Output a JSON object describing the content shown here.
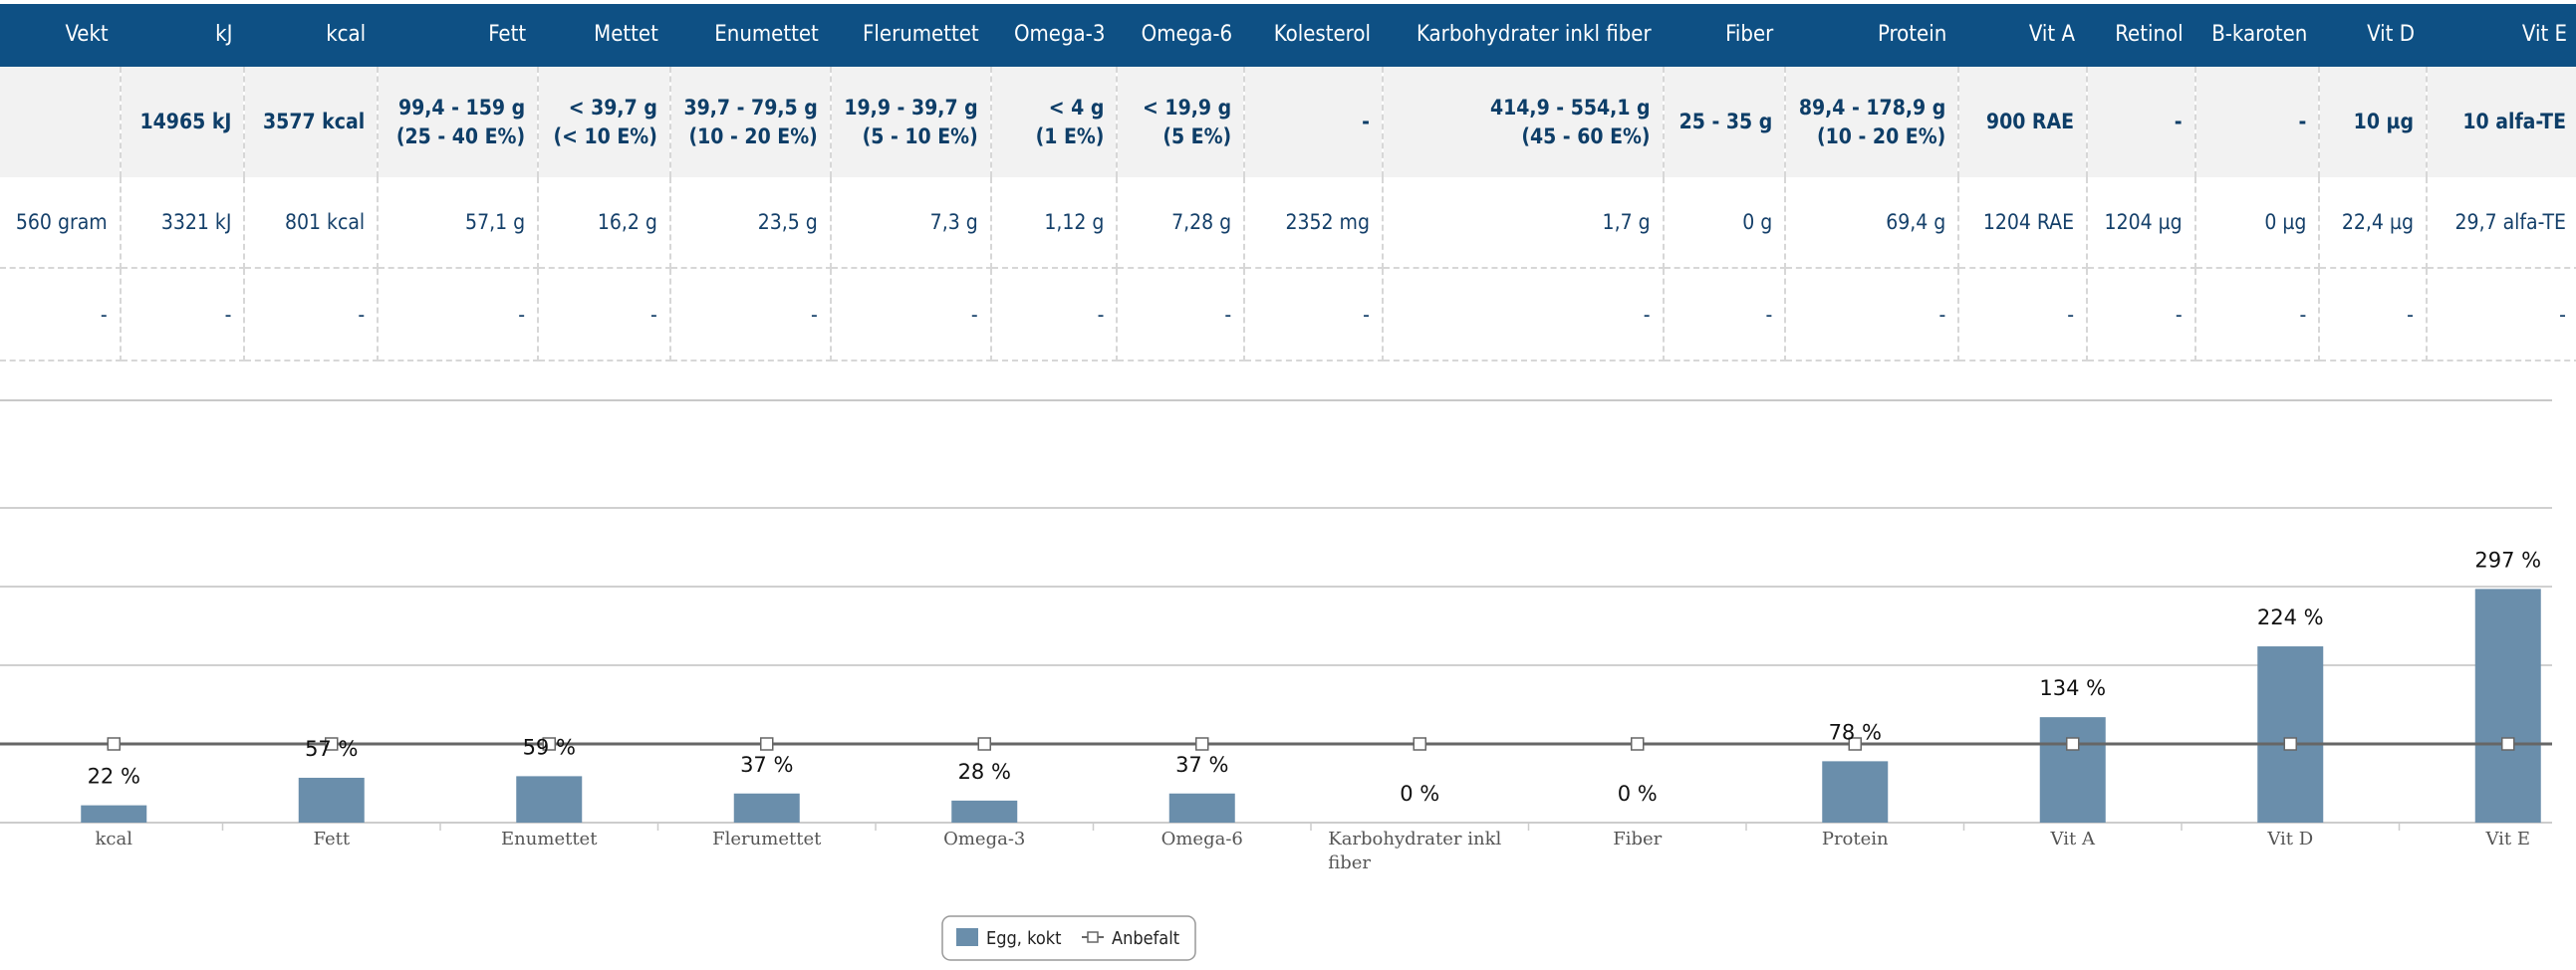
{
  "table": {
    "headers": [
      "Vekt",
      "kJ",
      "kcal",
      "Fett",
      "Mettet",
      "Enumettet",
      "Flerumettet",
      "Omega-3",
      "Omega-6",
      "Kolesterol",
      "Karbohydrater inkl fiber",
      "Fiber",
      "Protein",
      "Vit A",
      "Retinol",
      "B-karoten",
      "Vit D",
      "Vit E"
    ],
    "recommended": [
      "",
      "14965 kJ",
      "3577 kcal",
      "99,4 - 159 g\n(25 - 40 E%)",
      "< 39,7 g\n(< 10 E%)",
      "39,7 - 79,5 g\n(10 - 20 E%)",
      "19,9 - 39,7 g\n(5 - 10 E%)",
      "< 4 g\n(1 E%)",
      "< 19,9 g\n(5 E%)",
      "-",
      "414,9 - 554,1 g\n(45 - 60 E%)",
      "25 - 35 g",
      "89,4 - 178,9 g\n(10 - 20 E%)",
      "900 RAE",
      "-",
      "-",
      "10 µg",
      "10 alfa-TE"
    ],
    "values": [
      "560 gram",
      "3321 kJ",
      "801 kcal",
      "57,1 g",
      "16,2 g",
      "23,5 g",
      "7,3 g",
      "1,12 g",
      "7,28 g",
      "2352 mg",
      "1,7 g",
      "0 g",
      "69,4 g",
      "1204 RAE",
      "1204 µg",
      "0 µg",
      "22,4 µg",
      "29,7 alfa-TE"
    ],
    "empty_row": [
      "-",
      "-",
      "-",
      "-",
      "-",
      "-",
      "-",
      "-",
      "-",
      "-",
      "-",
      "-",
      "-",
      "-",
      "-",
      "-",
      "-",
      "-"
    ]
  },
  "chart_data": {
    "type": "bar",
    "categories": [
      "kcal",
      "Fett",
      "Enumettet",
      "Flerumettet",
      "Omega-3",
      "Omega-6",
      "Karbohydrater inkl fiber",
      "Fiber",
      "Protein",
      "Vit A",
      "Vit D",
      "Vit E"
    ],
    "series": [
      {
        "name": "Egg, kokt",
        "type": "bar",
        "values": [
          22,
          57,
          59,
          37,
          28,
          37,
          0,
          0,
          78,
          134,
          224,
          297
        ],
        "color": "#6a8eab"
      },
      {
        "name": "Anbefalt",
        "type": "line",
        "values": [
          100,
          100,
          100,
          100,
          100,
          100,
          100,
          100,
          100,
          100,
          100,
          100
        ],
        "color": "#666666"
      }
    ],
    "data_labels": [
      "22 %",
      "57 %",
      "59 %",
      "37 %",
      "28 %",
      "37 %",
      "0 %",
      "0 %",
      "78 %",
      "134 %",
      "224 %",
      "297 %"
    ],
    "ylim": [
      0,
      400
    ],
    "gridlines": [
      0,
      100,
      200,
      300,
      400
    ],
    "grid": true,
    "legend": {
      "placement": "bottom-center",
      "items": [
        "Egg, kokt",
        "Anbefalt"
      ]
    }
  }
}
